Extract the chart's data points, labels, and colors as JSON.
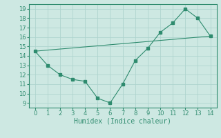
{
  "line1_x": [
    0,
    1,
    2,
    3,
    4,
    5,
    6,
    7,
    8,
    9,
    10,
    11,
    12,
    13,
    14
  ],
  "line1_y": [
    14.5,
    13.0,
    12.0,
    11.5,
    11.3,
    9.5,
    9.0,
    11.0,
    13.5,
    14.8,
    16.5,
    17.5,
    19.0,
    18.0,
    16.1
  ],
  "line2_x": [
    0,
    14
  ],
  "line2_y": [
    14.5,
    16.1
  ],
  "color": "#2e8b6e",
  "bg_color": "#cde8e2",
  "grid_color": "#aed4ce",
  "xlabel": "Humidex (Indice chaleur)",
  "xlim": [
    -0.5,
    14.5
  ],
  "ylim": [
    8.5,
    19.5
  ],
  "yticks": [
    9,
    10,
    11,
    12,
    13,
    14,
    15,
    16,
    17,
    18,
    19
  ],
  "xticks": [
    0,
    1,
    2,
    3,
    4,
    5,
    6,
    7,
    8,
    9,
    10,
    11,
    12,
    13,
    14
  ],
  "xlabel_fontsize": 7,
  "tick_fontsize": 6
}
